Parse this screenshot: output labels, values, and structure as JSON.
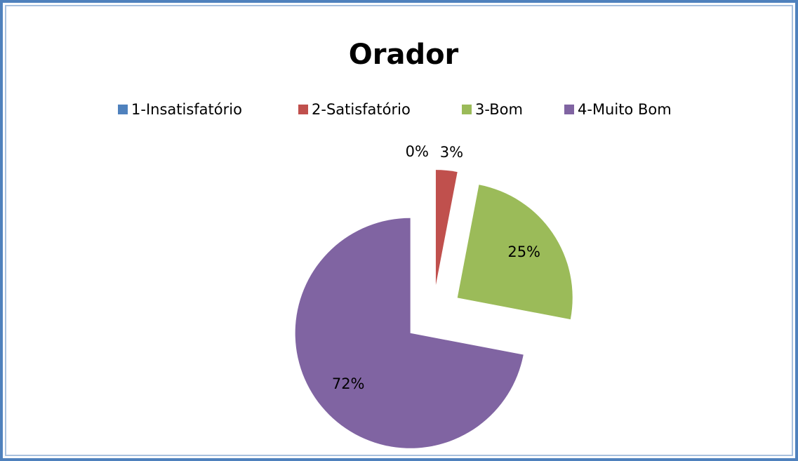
{
  "chart_data": {
    "type": "pie",
    "title": "Orador",
    "categories": [
      "1-Insatisfatório",
      "2-Satisfatório",
      "3-Bom",
      "4-Muito Bom"
    ],
    "values": [
      0,
      3,
      25,
      72
    ],
    "value_labels": [
      "0%",
      "3%",
      "25%",
      "72%"
    ],
    "colors": [
      "#4f81bd",
      "#c0504d",
      "#9bbb59",
      "#8064a2"
    ],
    "legend": "top"
  }
}
